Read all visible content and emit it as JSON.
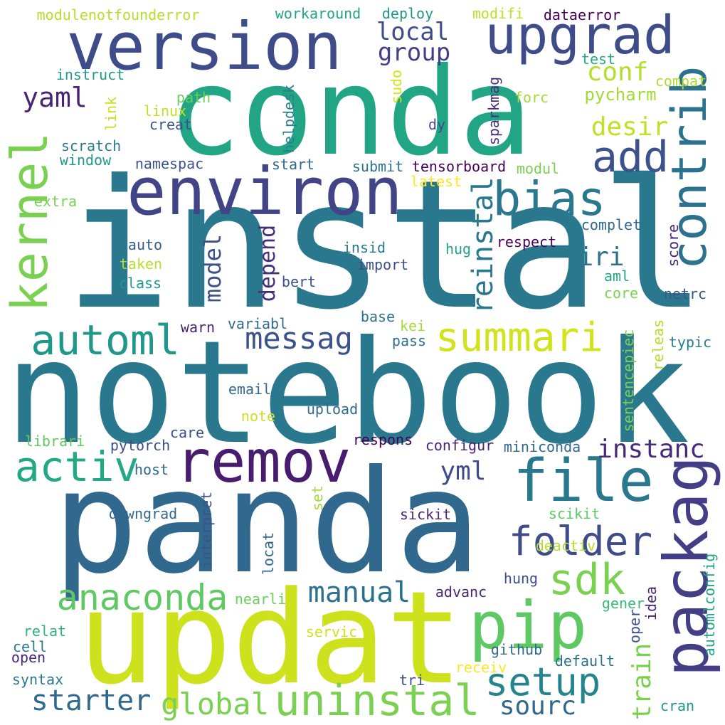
{
  "words": [
    {
      "text": "instal",
      "color": "#2a788e",
      "vertical": false
    },
    {
      "text": "notebook",
      "color": "#2a788e",
      "vertical": false
    },
    {
      "text": "panda",
      "color": "#31688e",
      "vertical": false
    },
    {
      "text": "conda",
      "color": "#21a585",
      "vertical": false
    },
    {
      "text": "updat",
      "color": "#cde11d",
      "vertical": false
    },
    {
      "text": "version",
      "color": "#3e4c8a",
      "vertical": false
    },
    {
      "text": "environ",
      "color": "#414487",
      "vertical": false
    },
    {
      "text": "upgrad",
      "color": "#3e4c8a",
      "vertical": false
    },
    {
      "text": "packag",
      "color": "#433e85",
      "vertical": true
    },
    {
      "text": "remov",
      "color": "#481c6e",
      "vertical": false
    },
    {
      "text": "file",
      "color": "#2a788e",
      "vertical": false
    },
    {
      "text": "pip",
      "color": "#5ec962",
      "vertical": false
    },
    {
      "text": "kernel",
      "color": "#7ad151",
      "vertical": true
    },
    {
      "text": "contrib",
      "color": "#2c728e",
      "vertical": true
    },
    {
      "text": "bias",
      "color": "#2a788e",
      "vertical": false
    },
    {
      "text": "automl",
      "color": "#1f988b",
      "vertical": false
    },
    {
      "text": "activ",
      "color": "#22a884",
      "vertical": false
    },
    {
      "text": "anaconda",
      "color": "#5ec962",
      "vertical": false
    },
    {
      "text": "summari",
      "color": "#d2e21b",
      "vertical": false
    },
    {
      "text": "uninstal",
      "color": "#7ad151",
      "vertical": false
    },
    {
      "text": "setup",
      "color": "#25858e",
      "vertical": false
    },
    {
      "text": "folder",
      "color": "#3e4c8a",
      "vertical": false
    },
    {
      "text": "add",
      "color": "#3b528b",
      "vertical": false
    },
    {
      "text": "sdk",
      "color": "#7ad151",
      "vertical": false
    },
    {
      "text": "messag",
      "color": "#3b528b",
      "vertical": false
    },
    {
      "text": "manual",
      "color": "#2c728e",
      "vertical": false
    },
    {
      "text": "starter",
      "color": "#31688e",
      "vertical": false
    },
    {
      "text": "global",
      "color": "#7ad151",
      "vertical": false
    },
    {
      "text": "reinstal",
      "color": "#2a788e",
      "vertical": true
    },
    {
      "text": "instanc",
      "color": "#482878",
      "vertical": false
    },
    {
      "text": "yml",
      "color": "#3e4c8a",
      "vertical": false
    },
    {
      "text": "iri",
      "color": "#2c728e",
      "vertical": false
    },
    {
      "text": "train",
      "color": "#7ad151",
      "vertical": true
    },
    {
      "text": "sourc",
      "color": "#31688e",
      "vertical": false
    },
    {
      "text": "desir",
      "color": "#c2df23",
      "vertical": false
    },
    {
      "text": "conf",
      "color": "#b5de2b",
      "vertical": false
    },
    {
      "text": "yaml",
      "color": "#482475",
      "vertical": false
    },
    {
      "text": "local",
      "color": "#3e4c8a",
      "vertical": false
    },
    {
      "text": "group",
      "color": "#433e85",
      "vertical": false
    },
    {
      "text": "model",
      "color": "#3b528b",
      "vertical": true
    },
    {
      "text": "depend",
      "color": "#472c7a",
      "vertical": true
    },
    {
      "text": "pycharm",
      "color": "#a2da37",
      "vertical": false
    },
    {
      "text": "modulenotfounderror",
      "color": "#b5de2b",
      "vertical": false
    },
    {
      "text": "workaround",
      "color": "#20a386",
      "vertical": false
    },
    {
      "text": "deploy",
      "color": "#1f958b",
      "vertical": false
    },
    {
      "text": "modifi",
      "color": "#bddf26",
      "vertical": false
    },
    {
      "text": "dataerror",
      "color": "#440154",
      "vertical": false
    },
    {
      "text": "test",
      "color": "#25ab82",
      "vertical": false
    },
    {
      "text": "compat",
      "color": "#addc30",
      "vertical": false
    },
    {
      "text": "instruct",
      "color": "#1e9b8a",
      "vertical": false
    },
    {
      "text": "path",
      "color": "#6ccd5a",
      "vertical": false
    },
    {
      "text": "forc",
      "color": "#a5db36",
      "vertical": false
    },
    {
      "text": "linux",
      "color": "#c2df23",
      "vertical": false
    },
    {
      "text": "creat",
      "color": "#3b528b",
      "vertical": false
    },
    {
      "text": "dy",
      "color": "#3e4c8a",
      "vertical": false
    },
    {
      "text": "sparkmag",
      "color": "#472f7d",
      "vertical": true
    },
    {
      "text": "helpdesk",
      "color": "#277f8e",
      "vertical": true
    },
    {
      "text": "link",
      "color": "#c8e020",
      "vertical": true
    },
    {
      "text": "sudo",
      "color": "#d2e21b",
      "vertical": true
    },
    {
      "text": "scratch",
      "color": "#287d8e",
      "vertical": false
    },
    {
      "text": "window",
      "color": "#1f988b",
      "vertical": false
    },
    {
      "text": "namespac",
      "color": "#3b528b",
      "vertical": false
    },
    {
      "text": "start",
      "color": "#31688e",
      "vertical": false
    },
    {
      "text": "submit",
      "color": "#2c728e",
      "vertical": false
    },
    {
      "text": "tensorboard",
      "color": "#440154",
      "vertical": false
    },
    {
      "text": "modul",
      "color": "#7ad151",
      "vertical": false
    },
    {
      "text": "latest",
      "color": "#fde725",
      "vertical": false
    },
    {
      "text": "extra",
      "color": "#7ad151",
      "vertical": false
    },
    {
      "text": "complet",
      "color": "#31688e",
      "vertical": false
    },
    {
      "text": "auto",
      "color": "#365c8d",
      "vertical": false
    },
    {
      "text": "insid",
      "color": "#2a788e",
      "vertical": false
    },
    {
      "text": "hug",
      "color": "#20a386",
      "vertical": false
    },
    {
      "text": "respect",
      "color": "#440154",
      "vertical": false
    },
    {
      "text": "score",
      "color": "#482475",
      "vertical": true
    },
    {
      "text": "taken",
      "color": "#b5de2b",
      "vertical": false
    },
    {
      "text": "import",
      "color": "#3e4c8a",
      "vertical": false
    },
    {
      "text": "aml",
      "color": "#22a884",
      "vertical": false
    },
    {
      "text": "class",
      "color": "#1f988b",
      "vertical": false
    },
    {
      "text": "bert",
      "color": "#3b528b",
      "vertical": false
    },
    {
      "text": "core",
      "color": "#7ad151",
      "vertical": false
    },
    {
      "text": "netrc",
      "color": "#39568c",
      "vertical": false
    },
    {
      "text": "base",
      "color": "#2c728e",
      "vertical": false
    },
    {
      "text": "warn",
      "color": "#481f70",
      "vertical": false
    },
    {
      "text": "variabl",
      "color": "#31688e",
      "vertical": false
    },
    {
      "text": "kei",
      "color": "#a5db36",
      "vertical": false
    },
    {
      "text": "sentencepiec",
      "color": "#7ad151",
      "vertical": true
    },
    {
      "text": "releas",
      "color": "#b5de2b",
      "vertical": true
    },
    {
      "text": "typic",
      "color": "#277f8e",
      "vertical": false
    },
    {
      "text": "pass",
      "color": "#2c728e",
      "vertical": false
    },
    {
      "text": "email",
      "color": "#31688e",
      "vertical": false
    },
    {
      "text": "upload",
      "color": "#31688e",
      "vertical": false
    },
    {
      "text": "note",
      "color": "#cde11d",
      "vertical": false
    },
    {
      "text": "librari",
      "color": "#5ec962",
      "vertical": false
    },
    {
      "text": "care",
      "color": "#3e4c8a",
      "vertical": false
    },
    {
      "text": "respons",
      "color": "#440154",
      "vertical": false
    },
    {
      "text": "pytorch",
      "color": "#3e4c8a",
      "vertical": false
    },
    {
      "text": "configur",
      "color": "#482173",
      "vertical": false
    },
    {
      "text": "miniconda",
      "color": "#31688e",
      "vertical": false
    },
    {
      "text": "host",
      "color": "#31688e",
      "vertical": false
    },
    {
      "text": "set",
      "color": "#a2da37",
      "vertical": true
    },
    {
      "text": "interpret",
      "color": "#3b528b",
      "vertical": true
    },
    {
      "text": "downgrad",
      "color": "#31688e",
      "vertical": false
    },
    {
      "text": "sickit",
      "color": "#482878",
      "vertical": false
    },
    {
      "text": "scikit",
      "color": "#5ec962",
      "vertical": false
    },
    {
      "text": "deactiv",
      "color": "#b5de2b",
      "vertical": false
    },
    {
      "text": "locat",
      "color": "#31688e",
      "vertical": true
    },
    {
      "text": "hung",
      "color": "#3e4c8a",
      "vertical": false
    },
    {
      "text": "automlconfig",
      "color": "#20a386",
      "vertical": true
    },
    {
      "text": "idea",
      "color": "#482475",
      "vertical": true
    },
    {
      "text": "gener",
      "color": "#38b977",
      "vertical": false
    },
    {
      "text": "advanc",
      "color": "#482878",
      "vertical": false
    },
    {
      "text": "nearli",
      "color": "#6ccd5a",
      "vertical": false
    },
    {
      "text": "oper",
      "color": "#3b528b",
      "vertical": true
    },
    {
      "text": "relat",
      "color": "#2db27d",
      "vertical": false
    },
    {
      "text": "servic",
      "color": "#cde11d",
      "vertical": false
    },
    {
      "text": "cell",
      "color": "#2a788e",
      "vertical": false
    },
    {
      "text": "open",
      "color": "#482878",
      "vertical": false
    },
    {
      "text": "github",
      "color": "#31688e",
      "vertical": false
    },
    {
      "text": "default",
      "color": "#2c728e",
      "vertical": false
    },
    {
      "text": "receiv",
      "color": "#fde725",
      "vertical": false
    },
    {
      "text": "syntax",
      "color": "#2a788e",
      "vertical": false
    },
    {
      "text": "tri",
      "color": "#3e4c8a",
      "vertical": false
    },
    {
      "text": "cran",
      "color": "#1f988b",
      "vertical": false
    }
  ]
}
